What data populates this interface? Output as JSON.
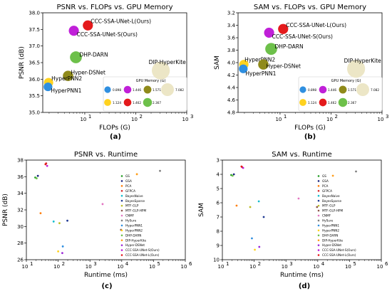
{
  "chart_data": [
    {
      "id": "a",
      "type": "scatter",
      "title": "PSNR vs. FLOPs vs. GPU Memory",
      "xlabel": "FLOPs (G)",
      "ylabel": "PSNR (dB)",
      "xscale": "log",
      "xlim": [
        1.5,
        1000
      ],
      "ylim": [
        35.0,
        38.0
      ],
      "xticks": [
        {
          "v": 10,
          "label": "10",
          "exp": "1"
        },
        {
          "v": 100,
          "label": "10",
          "exp": "2"
        },
        {
          "v": 1000,
          "label": "10",
          "exp": "3"
        }
      ],
      "yticks": [
        {
          "v": 35.0,
          "label": "35.0"
        },
        {
          "v": 35.5,
          "label": "35.5"
        },
        {
          "v": 36.0,
          "label": "36.0"
        },
        {
          "v": 36.5,
          "label": "36.5"
        },
        {
          "v": 37.0,
          "label": "37.0"
        },
        {
          "v": 37.5,
          "label": "37.5"
        },
        {
          "v": 38.0,
          "label": "38.0"
        }
      ],
      "points": [
        {
          "name": "CCC-SSA-UNet-L(Ours)",
          "x": 11.5,
          "y": 37.62,
          "color": "#e41a1c",
          "mem": 1.462,
          "dx": 4,
          "dy": -3
        },
        {
          "name": "CCC-SSA-UNet-S(Ours)",
          "x": 6.1,
          "y": 37.46,
          "color": "#c020d8",
          "mem": 1.446,
          "dx": 4,
          "dy": 8
        },
        {
          "name": "DHP-DARN",
          "x": 6.7,
          "y": 36.66,
          "color": "#6dc04a",
          "mem": 2.367,
          "dx": 5,
          "dy": -1
        },
        {
          "name": "Hyper-DSNet",
          "x": 4.7,
          "y": 36.1,
          "color": "#8f8a1a",
          "mem": 1.571,
          "dx": 4,
          "dy": -2
        },
        {
          "name": "HyperPNN2",
          "x": 1.95,
          "y": 35.9,
          "color": "#ffd21f",
          "mem": 1.124,
          "dx": 4,
          "dy": -3
        },
        {
          "name": "HyperPNN1",
          "x": 1.9,
          "y": 35.77,
          "color": "#2f8fe0",
          "mem": 0.898,
          "dx": 4,
          "dy": 8
        },
        {
          "name": "DIP-HyperKite",
          "x": 310,
          "y": 36.26,
          "color": "#ece6c6",
          "mem": 7.082,
          "dx": -17,
          "dy": -9
        }
      ],
      "legend": {
        "title": "GPU Memory (G)",
        "placement": "lower-right",
        "entries": [
          {
            "label": "0.898",
            "color": "#2f8fe0",
            "mem": 0.898
          },
          {
            "label": "1.446",
            "color": "#c020d8",
            "mem": 1.446
          },
          {
            "label": "1.571",
            "color": "#8f8a1a",
            "mem": 1.571
          },
          {
            "label": "7.082",
            "color": "#ece6c6",
            "mem": 7.082
          },
          {
            "label": "1.124",
            "color": "#ffd21f",
            "mem": 1.124
          },
          {
            "label": "1.462",
            "color": "#e41a1c",
            "mem": 1.462
          },
          {
            "label": "2.367",
            "color": "#6dc04a",
            "mem": 2.367
          }
        ]
      },
      "grid": false,
      "caption": "(a)"
    },
    {
      "id": "b",
      "type": "scatter",
      "title": "SAM vs. FLOPs vs. GPU Memory",
      "xlabel": "FLOPs (G)",
      "ylabel": "SAM",
      "xscale": "log",
      "yinverted": true,
      "xlim": [
        1.5,
        1000
      ],
      "ylim": [
        3.2,
        4.8
      ],
      "xticks": [
        {
          "v": 10,
          "label": "10",
          "exp": "1"
        },
        {
          "v": 100,
          "label": "10",
          "exp": "2"
        },
        {
          "v": 1000,
          "label": "10",
          "exp": "3"
        }
      ],
      "yticks": [
        {
          "v": 3.2,
          "label": "3.2"
        },
        {
          "v": 3.4,
          "label": "3.4"
        },
        {
          "v": 3.6,
          "label": "3.6"
        },
        {
          "v": 3.8,
          "label": "3.8"
        },
        {
          "v": 4.0,
          "label": "4.0"
        },
        {
          "v": 4.2,
          "label": "4.2"
        },
        {
          "v": 4.4,
          "label": "4.4"
        },
        {
          "v": 4.6,
          "label": "4.6"
        },
        {
          "v": 4.8,
          "label": "4.8"
        }
      ],
      "points": [
        {
          "name": "CCC-SSA-UNet-L(Ours)",
          "x": 11.5,
          "y": 3.46,
          "color": "#e41a1c",
          "mem": 1.462,
          "dx": 4,
          "dy": -3
        },
        {
          "name": "CCC-SSA-UNet-S(Ours)",
          "x": 6.1,
          "y": 3.52,
          "color": "#c020d8",
          "mem": 1.446,
          "dx": 4,
          "dy": 8
        },
        {
          "name": "DHP-DARN",
          "x": 6.7,
          "y": 3.78,
          "color": "#6dc04a",
          "mem": 2.367,
          "dx": 5,
          "dy": -1
        },
        {
          "name": "HyperPNN2",
          "x": 1.95,
          "y": 4.03,
          "color": "#ffd21f",
          "mem": 1.124,
          "dx": 1,
          "dy": -4
        },
        {
          "name": "Hyper-DSNet",
          "x": 4.7,
          "y": 4.03,
          "color": "#8f8a1a",
          "mem": 1.571,
          "dx": 4,
          "dy": 5
        },
        {
          "name": "HyperPNN1",
          "x": 1.9,
          "y": 4.1,
          "color": "#2f8fe0",
          "mem": 0.898,
          "dx": 3,
          "dy": 9
        },
        {
          "name": "DIP-HyperKite",
          "x": 310,
          "y": 4.1,
          "color": "#ece6c6",
          "mem": 7.082,
          "dx": -17,
          "dy": -9
        }
      ],
      "legend": {
        "title": "GPU Memory (G)",
        "placement": "lower-right",
        "entries": [
          {
            "label": "0.898",
            "color": "#2f8fe0",
            "mem": 0.898
          },
          {
            "label": "1.446",
            "color": "#c020d8",
            "mem": 1.446
          },
          {
            "label": "1.571",
            "color": "#8f8a1a",
            "mem": 1.571
          },
          {
            "label": "7.082",
            "color": "#ece6c6",
            "mem": 7.082
          },
          {
            "label": "1.124",
            "color": "#ffd21f",
            "mem": 1.124
          },
          {
            "label": "1.462",
            "color": "#e41a1c",
            "mem": 1.462
          },
          {
            "label": "2.367",
            "color": "#6dc04a",
            "mem": 2.367
          }
        ]
      },
      "grid": false,
      "caption": "(b)"
    },
    {
      "id": "c",
      "type": "scatter",
      "title": "PSNR vs. Runtime",
      "xlabel": "Runtime (ms)",
      "ylabel": "PSNR (dB)",
      "xscale": "log",
      "xlim": [
        10,
        1000000
      ],
      "ylim": [
        26,
        38
      ],
      "xticks": [
        {
          "v": 10,
          "label": "10",
          "exp": "1"
        },
        {
          "v": 100,
          "label": "10",
          "exp": "2"
        },
        {
          "v": 1000,
          "label": "10",
          "exp": "3"
        },
        {
          "v": 10000,
          "label": "10",
          "exp": "4"
        },
        {
          "v": 100000,
          "label": "10",
          "exp": "5"
        },
        {
          "v": 1000000,
          "label": "10",
          "exp": "6"
        }
      ],
      "yticks": [
        {
          "v": 26,
          "label": "26"
        },
        {
          "v": 28,
          "label": "28"
        },
        {
          "v": 30,
          "label": "30"
        },
        {
          "v": 32,
          "label": "32"
        },
        {
          "v": 34,
          "label": "34"
        },
        {
          "v": 36,
          "label": "36"
        },
        {
          "v": 38,
          "label": "38"
        }
      ],
      "points": [
        {
          "name": "GS",
          "x": 19,
          "y": 35.9,
          "color": "#2ca02c"
        },
        {
          "name": "GSA",
          "x": 23,
          "y": 36.1,
          "color": "#1a237e"
        },
        {
          "name": "PCA",
          "x": 28,
          "y": 31.6,
          "color": "#ff7f0e"
        },
        {
          "name": "GFPCA",
          "x": 42,
          "y": 37.6,
          "color": "#d62728"
        },
        {
          "name": "BayesNaive",
          "x": 72,
          "y": 30.6,
          "color": "#17becf"
        },
        {
          "name": "BayesSparse",
          "x": 195,
          "y": 30.7,
          "color": "#1f3a93"
        },
        {
          "name": "MTF-GLP",
          "x": 110,
          "y": 30.4,
          "color": "#bcbd22"
        },
        {
          "name": "MTF-GLP-HPM",
          "x": 9500,
          "y": 29.6,
          "color": "#8c564b"
        },
        {
          "name": "CNMF",
          "x": 2500,
          "y": 32.7,
          "color": "#e377c2"
        },
        {
          "name": "HySure",
          "x": 160000,
          "y": 36.7,
          "color": "#7f7f7f"
        },
        {
          "name": "HyperPNN1",
          "x": 140,
          "y": 27.6,
          "color": "#2f8fe0"
        },
        {
          "name": "HyperPNN2",
          "x": 100,
          "y": 27.0,
          "color": "#ffd21f"
        },
        {
          "name": "DHP-DARN",
          "x": 21,
          "y": 35.8,
          "color": "#6dc04a"
        },
        {
          "name": "DIP-HyperKite",
          "x": 30000,
          "y": 36.3,
          "color": "#ff9f1c"
        },
        {
          "name": "Hyper-DSNet",
          "x": 135,
          "y": 26.8,
          "color": "#9b27d8"
        },
        {
          "name": "CCC-SSA-UNet-S(Ours)",
          "x": 45,
          "y": 37.3,
          "color": "#c020d8"
        },
        {
          "name": "CCC-SSA-UNet-L(Ours)",
          "x": 40,
          "y": 37.5,
          "color": "#e41a1c"
        }
      ],
      "legend": {
        "placement": "right",
        "entries": [
          {
            "label": "GS",
            "color": "#2ca02c"
          },
          {
            "label": "GSA",
            "color": "#1a237e"
          },
          {
            "label": "PCA",
            "color": "#ff7f0e"
          },
          {
            "label": "GFPCA",
            "color": "#d62728"
          },
          {
            "label": "BayesNaive",
            "color": "#17becf"
          },
          {
            "label": "BayesSparse",
            "color": "#1f3a93"
          },
          {
            "label": "MTF-GLP",
            "color": "#bcbd22"
          },
          {
            "label": "MTF-GLP-HPM",
            "color": "#8c564b"
          },
          {
            "label": "CNMF",
            "color": "#e377c2"
          },
          {
            "label": "HySure",
            "color": "#7f7f7f"
          },
          {
            "label": "HyperPNN1",
            "color": "#2f8fe0"
          },
          {
            "label": "HyperPNN2",
            "color": "#ffd21f"
          },
          {
            "label": "DHP-DARN",
            "color": "#6dc04a"
          },
          {
            "label": "DIP-HyperKite",
            "color": "#ff9f1c"
          },
          {
            "label": "Hyper-DSNet",
            "color": "#9b27d8"
          },
          {
            "label": "CCC-SSA-UNet-S(Ours)",
            "color": "#c020d8"
          },
          {
            "label": "CCC-SSA-UNet-L(Ours)",
            "color": "#e41a1c"
          }
        ]
      },
      "grid": false,
      "caption": "(c)"
    },
    {
      "id": "d",
      "type": "scatter",
      "title": "SAM vs. Runtime",
      "xlabel": "Runtime (ms)",
      "ylabel": "SAM",
      "xscale": "log",
      "yinverted": true,
      "xlim": [
        10,
        1000000
      ],
      "ylim": [
        3,
        10
      ],
      "xticks": [
        {
          "v": 10,
          "label": "10",
          "exp": "1"
        },
        {
          "v": 100,
          "label": "10",
          "exp": "2"
        },
        {
          "v": 1000,
          "label": "10",
          "exp": "3"
        },
        {
          "v": 10000,
          "label": "10",
          "exp": "4"
        },
        {
          "v": 100000,
          "label": "10",
          "exp": "5"
        },
        {
          "v": 1000000,
          "label": "10",
          "exp": "6"
        }
      ],
      "yticks": [
        {
          "v": 3,
          "label": "3"
        },
        {
          "v": 4,
          "label": "4"
        },
        {
          "v": 5,
          "label": "5"
        },
        {
          "v": 6,
          "label": "6"
        },
        {
          "v": 7,
          "label": "7"
        },
        {
          "v": 8,
          "label": "8"
        },
        {
          "v": 9,
          "label": "9"
        },
        {
          "v": 10,
          "label": "10"
        }
      ],
      "points": [
        {
          "name": "GS",
          "x": 19,
          "y": 4.05,
          "color": "#2ca02c"
        },
        {
          "name": "GSA",
          "x": 23,
          "y": 4.0,
          "color": "#1a237e"
        },
        {
          "name": "PCA",
          "x": 28,
          "y": 6.2,
          "color": "#ff7f0e"
        },
        {
          "name": "GFPCA",
          "x": 42,
          "y": 3.5,
          "color": "#d62728"
        },
        {
          "name": "BayesNaive",
          "x": 140,
          "y": 5.9,
          "color": "#17becf"
        },
        {
          "name": "BayesSparse",
          "x": 200,
          "y": 7.0,
          "color": "#1f3a93"
        },
        {
          "name": "MTF-GLP",
          "x": 75,
          "y": 6.3,
          "color": "#bcbd22"
        },
        {
          "name": "MTF-GLP-HPM",
          "x": 9500,
          "y": 6.3,
          "color": "#8c564b"
        },
        {
          "name": "CNMF",
          "x": 2500,
          "y": 5.7,
          "color": "#e377c2"
        },
        {
          "name": "HySure",
          "x": 160000,
          "y": 3.8,
          "color": "#7f7f7f"
        },
        {
          "name": "HyperPNN1",
          "x": 85,
          "y": 8.5,
          "color": "#2f8fe0"
        },
        {
          "name": "HyperPNN2",
          "x": 105,
          "y": 9.3,
          "color": "#ffd21f"
        },
        {
          "name": "DHP-DARN",
          "x": 21,
          "y": 4.1,
          "color": "#6dc04a"
        },
        {
          "name": "DIP-HyperKite",
          "x": 30000,
          "y": 4.1,
          "color": "#ff9f1c"
        },
        {
          "name": "Hyper-DSNet",
          "x": 145,
          "y": 9.1,
          "color": "#9b27d8"
        },
        {
          "name": "CCC-SSA-UNet-S(Ours)",
          "x": 45,
          "y": 3.55,
          "color": "#c020d8"
        },
        {
          "name": "CCC-SSA-UNet-L(Ours)",
          "x": 40,
          "y": 3.45,
          "color": "#e41a1c"
        }
      ],
      "legend": {
        "placement": "right",
        "entries": [
          {
            "label": "GS",
            "color": "#2ca02c"
          },
          {
            "label": "GSA",
            "color": "#1a237e"
          },
          {
            "label": "PCA",
            "color": "#ff7f0e"
          },
          {
            "label": "GFPCA",
            "color": "#d62728"
          },
          {
            "label": "BayesNaive",
            "color": "#17becf"
          },
          {
            "label": "BayesSparse",
            "color": "#1f3a93"
          },
          {
            "label": "MTF-GLP",
            "color": "#bcbd22"
          },
          {
            "label": "MTF-GLP-HPM",
            "color": "#8c564b"
          },
          {
            "label": "CNMF",
            "color": "#e377c2"
          },
          {
            "label": "HySure",
            "color": "#7f7f7f"
          },
          {
            "label": "HyperPNN1",
            "color": "#2f8fe0"
          },
          {
            "label": "HyperPNN2",
            "color": "#ffd21f"
          },
          {
            "label": "DHP-DARN",
            "color": "#6dc04a"
          },
          {
            "label": "DIP-HyperKite",
            "color": "#ff9f1c"
          },
          {
            "label": "Hyper-DSNet",
            "color": "#9b27d8"
          },
          {
            "label": "CCC-SSA-UNet-S(Ours)",
            "color": "#c020d8"
          },
          {
            "label": "CCC-SSA-UNet-L(Ours)",
            "color": "#e41a1c"
          }
        ]
      },
      "grid": false,
      "caption": "(d)"
    }
  ]
}
